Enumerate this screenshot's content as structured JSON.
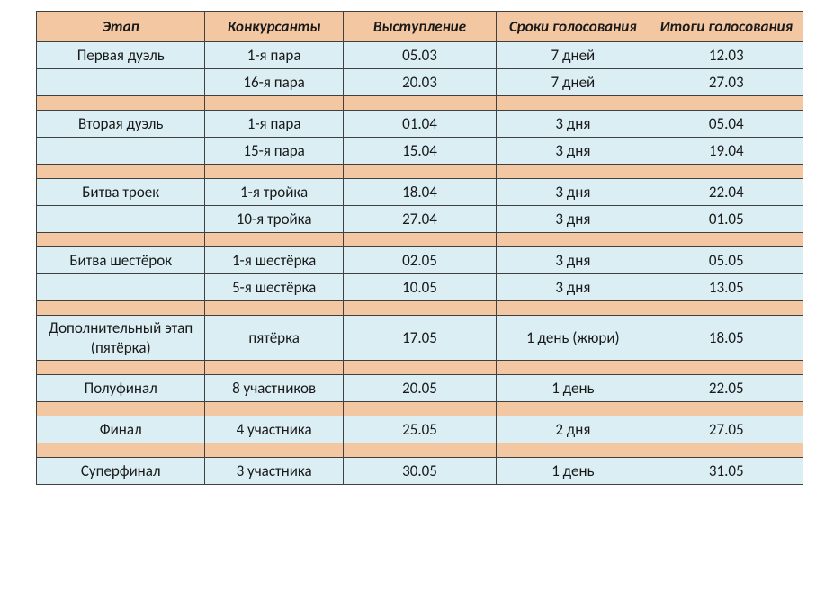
{
  "table": {
    "background_color": "#ffffff",
    "header_bg": "#f4c7a3",
    "data_bg": "#daeef3",
    "spacer_bg": "#f4c7a3",
    "border_color": "#404040",
    "font_family": "Calibri, Arial, sans-serif",
    "header_fontsize": 17,
    "cell_fontsize": 17,
    "header_style": "bold italic",
    "columns": [
      "Этап",
      "Конкурсанты",
      "Выступление",
      "Сроки голосования",
      "Итоги голосования"
    ],
    "column_widths_pct": [
      22,
      18,
      20,
      20,
      20
    ],
    "blocks": [
      {
        "rows": [
          [
            "Первая дуэль",
            "1-я пара",
            "05.03",
            "7 дней",
            "12.03"
          ],
          [
            "",
            "16-я пара",
            "20.03",
            "7 дней",
            "27.03"
          ]
        ]
      },
      {
        "rows": [
          [
            "Вторая дуэль",
            "1-я пара",
            "01.04",
            "3 дня",
            "05.04"
          ],
          [
            "",
            "15-я пара",
            "15.04",
            "3 дня",
            "19.04"
          ]
        ]
      },
      {
        "rows": [
          [
            "Битва троек",
            "1-я тройка",
            "18.04",
            "3 дня",
            "22.04"
          ],
          [
            "",
            "10-я тройка",
            "27.04",
            "3 дня",
            "01.05"
          ]
        ]
      },
      {
        "rows": [
          [
            "Битва шестёрок",
            "1-я шестёрка",
            "02.05",
            "3 дня",
            "05.05"
          ],
          [
            "",
            "5-я шестёрка",
            "10.05",
            "3 дня",
            "13.05"
          ]
        ]
      },
      {
        "rows": [
          [
            "Дополнительный этап (пятёрка)",
            "пятёрка",
            "17.05",
            "1 день (жюри)",
            "18.05"
          ]
        ]
      },
      {
        "rows": [
          [
            "Полуфинал",
            "8 участников",
            "20.05",
            "1 день",
            "22.05"
          ]
        ]
      },
      {
        "rows": [
          [
            "Финал",
            "4 участника",
            "25.05",
            "2 дня",
            "27.05"
          ]
        ]
      },
      {
        "rows": [
          [
            "Суперфинал",
            "3 участника",
            "30.05",
            "1 день",
            "31.05"
          ]
        ]
      }
    ]
  }
}
